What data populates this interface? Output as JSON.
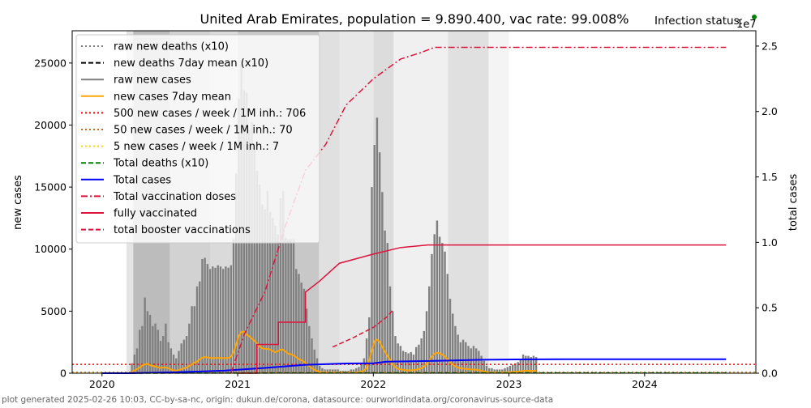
{
  "chart_data": {
    "type": "bar+line",
    "title": "United Arab Emirates, population = 9.890.400, vac rate: 99.008%",
    "status_label": "Infection status:",
    "status_color": "#008000",
    "ylabel_left": "new cases",
    "ylabel_right": "total cases",
    "right_axis_multiplier": "1e7",
    "xlim": [
      2019.78,
      2024.82
    ],
    "ylim_left": [
      0,
      27600
    ],
    "ylim_right": [
      0,
      26170000
    ],
    "x_ticks": [
      "2020",
      "2021",
      "2022",
      "2023",
      "2024"
    ],
    "y_ticks_left": [
      "0",
      "5000",
      "10000",
      "15000",
      "20000",
      "25000"
    ],
    "y_ticks_right": [
      "0.0",
      "0.5",
      "1.0",
      "1.5",
      "2.0",
      "2.5"
    ],
    "legend": [
      {
        "label": "raw new deaths (x10)",
        "color": "#808080",
        "style": "dotted"
      },
      {
        "label": "new deaths 7day mean (x10)",
        "color": "#000000",
        "style": "dashed"
      },
      {
        "label": "raw new cases",
        "color": "#808080",
        "style": "solid"
      },
      {
        "label": "new cases 7day mean",
        "color": "#ffa500",
        "style": "solid"
      },
      {
        "label": "500 new cases / week / 1M inh.: 706",
        "color": "#ff0000",
        "style": "dotted"
      },
      {
        "label": "50 new cases / week / 1M inh.: 70",
        "color": "#d2691e",
        "style": "dotted"
      },
      {
        "label": "5 new cases / week / 1M inh.: 7",
        "color": "#ffd700",
        "style": "dotted"
      },
      {
        "label": "Total deaths (x10)",
        "color": "#008000",
        "style": "dashed"
      },
      {
        "label": "Total cases",
        "color": "#0000ff",
        "style": "solid"
      },
      {
        "label": "Total vaccination doses",
        "color": "#dc143c",
        "style": "dashdot"
      },
      {
        "label": "fully vaccinated",
        "color": "#dc143c",
        "style": "solid"
      },
      {
        "label": "total booster vaccinations",
        "color": "#dc143c",
        "style": "dashed"
      }
    ],
    "thresholds": [
      706,
      70,
      7
    ],
    "raw_new_cases": {
      "x_start": 2020.22,
      "x_step_years": 0.01923,
      "values": [
        800,
        1500,
        2000,
        3500,
        3800,
        6100,
        5000,
        4700,
        3800,
        4000,
        3500,
        2600,
        3000,
        4000,
        2500,
        2000,
        1500,
        1200,
        1800,
        2400,
        2700,
        3000,
        4000,
        5400,
        5400,
        7000,
        7400,
        9200,
        9300,
        8800,
        8400,
        8600,
        8500,
        8700,
        8600,
        8400,
        8600,
        8500,
        8700,
        10800,
        16100,
        22100,
        24900,
        22800,
        22600,
        19600,
        20200,
        18500,
        16300,
        15200,
        13600,
        13200,
        14700,
        13000,
        12500,
        11900,
        11200,
        14100,
        14700,
        10900,
        10800,
        10800,
        10800,
        8400,
        8000,
        7300,
        6800,
        5200,
        3800,
        2800,
        1900,
        1200,
        600,
        400,
        300,
        300,
        300,
        300,
        300,
        300,
        200,
        200,
        200,
        200,
        300,
        300,
        400,
        500,
        800,
        1200,
        2800,
        4500,
        15000,
        18400,
        20600,
        17800,
        14600,
        11500,
        10500,
        7000,
        5000,
        3000,
        2400,
        2200,
        1800,
        1700,
        1600,
        1700,
        1500,
        2100,
        2300,
        2800,
        3400,
        5000,
        7000,
        9600,
        11200,
        12300,
        11000,
        10500,
        9800,
        8000,
        6000,
        4800,
        3800,
        3100,
        2500,
        2700,
        2500,
        2200,
        2000,
        2200,
        2000,
        1800,
        1400,
        1000,
        600,
        400,
        400,
        300,
        300,
        300,
        300,
        400,
        500,
        600,
        700,
        800,
        900,
        1100,
        1500,
        1400,
        1400,
        1300,
        1400,
        1300
      ]
    },
    "total_cases": [
      [
        2020.0,
        0
      ],
      [
        2020.2,
        0
      ],
      [
        2020.5,
        60000
      ],
      [
        2020.9,
        190000
      ],
      [
        2021.2,
        400000
      ],
      [
        2021.5,
        640000
      ],
      [
        2021.8,
        740000
      ],
      [
        2022.0,
        760000
      ],
      [
        2022.1,
        880000
      ],
      [
        2022.5,
        950000
      ],
      [
        2022.8,
        1030000
      ],
      [
        2023.2,
        1060000
      ],
      [
        2023.4,
        1067000
      ],
      [
        2024.6,
        1067000
      ]
    ],
    "total_deaths_x10": [
      [
        2020.0,
        0
      ],
      [
        2021.0,
        8000
      ],
      [
        2022.0,
        23000
      ],
      [
        2024.6,
        24000
      ]
    ],
    "total_vaccination_doses": [
      [
        2020.95,
        0
      ],
      [
        2021.05,
        3000000
      ],
      [
        2021.2,
        6200000
      ],
      [
        2021.35,
        11200000
      ],
      [
        2021.5,
        15500000
      ],
      [
        2021.65,
        17500000
      ],
      [
        2021.8,
        20500000
      ],
      [
        2022.0,
        22500000
      ],
      [
        2022.2,
        24000000
      ],
      [
        2022.35,
        24500000
      ],
      [
        2022.45,
        24900000
      ],
      [
        2024.6,
        24900000
      ]
    ],
    "fully_vaccinated": [
      [
        2021.0,
        0
      ],
      [
        2021.14,
        0
      ],
      [
        2021.14,
        2200000
      ],
      [
        2021.3,
        2200000
      ],
      [
        2021.3,
        3900000
      ],
      [
        2021.5,
        3900000
      ],
      [
        2021.5,
        6200000
      ],
      [
        2021.6,
        7000000
      ],
      [
        2021.75,
        8400000
      ],
      [
        2022.0,
        9100000
      ],
      [
        2022.2,
        9600000
      ],
      [
        2022.4,
        9800000
      ],
      [
        2024.6,
        9800000
      ]
    ],
    "total_booster_vaccinations": [
      [
        2021.7,
        2000000
      ],
      [
        2021.85,
        2700000
      ],
      [
        2022.0,
        3500000
      ],
      [
        2022.1,
        4300000
      ],
      [
        2022.15,
        4900000
      ]
    ],
    "infection_status_bands": [
      {
        "from": 2020.18,
        "to": 2020.23,
        "shade": "#e4e4e4"
      },
      {
        "from": 2020.23,
        "to": 2020.5,
        "shade": "#bcbcbc"
      },
      {
        "from": 2020.5,
        "to": 2020.8,
        "shade": "#d2d2d2"
      },
      {
        "from": 2020.8,
        "to": 2021.0,
        "shade": "#dadada"
      },
      {
        "from": 2021.0,
        "to": 2021.6,
        "shade": "#c8c8c8"
      },
      {
        "from": 2021.6,
        "to": 2021.75,
        "shade": "#e0e0e0"
      },
      {
        "from": 2021.75,
        "to": 2022.0,
        "shade": "#e8e8e8"
      },
      {
        "from": 2022.0,
        "to": 2022.15,
        "shade": "#dcdcdc"
      },
      {
        "from": 2022.15,
        "to": 2022.55,
        "shade": "#f0f0f0"
      },
      {
        "from": 2022.55,
        "to": 2022.85,
        "shade": "#e0e0e0"
      },
      {
        "from": 2022.85,
        "to": 2023.0,
        "shade": "#f4f4f4"
      }
    ]
  },
  "footer": "plot generated 2025-02-26 10:03, CC-by-sa-nc, origin: dukun.de/corona, datasource: ourworldindata.org/coronavirus-source-data"
}
